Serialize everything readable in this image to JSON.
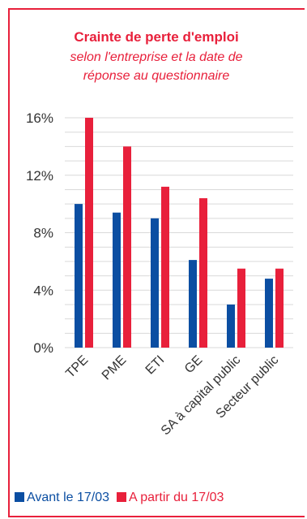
{
  "chart_data": {
    "type": "bar",
    "title": "Crainte de perte d'emploi",
    "subtitle_line1": "selon l'entreprise et la date de",
    "subtitle_line2": "réponse au questionnaire",
    "categories": [
      "TPE",
      "PME",
      "ETI",
      "GE",
      "SA à capital public",
      "Secteur public"
    ],
    "series": [
      {
        "name": "Avant le 17/03",
        "color": "#0b4ea2",
        "values": [
          10.0,
          9.4,
          9.0,
          6.1,
          3.0,
          4.8
        ]
      },
      {
        "name": "A partir du 17/03",
        "color": "#e8203b",
        "values": [
          16.0,
          14.0,
          11.2,
          10.4,
          5.5,
          5.5
        ]
      }
    ],
    "yticks": [
      "0%",
      "4%",
      "8%",
      "12%",
      "16%"
    ],
    "ylim": [
      0,
      16
    ],
    "grid": true,
    "legend": "bottom"
  }
}
